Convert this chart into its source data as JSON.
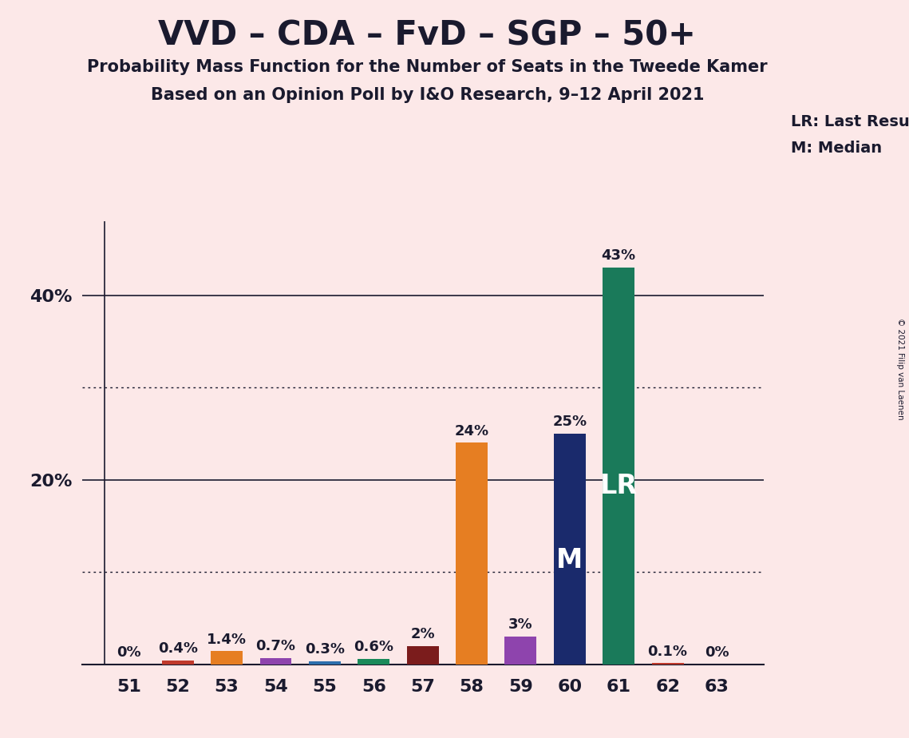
{
  "title": "VVD – CDA – FvD – SGP – 50+",
  "subtitle1": "Probability Mass Function for the Number of Seats in the Tweede Kamer",
  "subtitle2": "Based on an Opinion Poll by I&O Research, 9–12 April 2021",
  "copyright": "© 2021 Filip van Laenen",
  "categories": [
    51,
    52,
    53,
    54,
    55,
    56,
    57,
    58,
    59,
    60,
    61,
    62,
    63
  ],
  "values": [
    0.0,
    0.4,
    1.4,
    0.7,
    0.3,
    0.6,
    2.0,
    24.0,
    3.0,
    25.0,
    43.0,
    0.1,
    0.0
  ],
  "labels": [
    "0%",
    "0.4%",
    "1.4%",
    "0.7%",
    "0.3%",
    "0.6%",
    "2%",
    "24%",
    "3%",
    "25%",
    "43%",
    "0.1%",
    "0%"
  ],
  "bar_colors": [
    "#c0392b",
    "#c0392b",
    "#e67e22",
    "#8e44ad",
    "#2c6fad",
    "#1a8a5a",
    "#7b1c1c",
    "#e67e22",
    "#8e44ad",
    "#1a2a6c",
    "#1a7a5a",
    "#c0392b",
    "#c0392b"
  ],
  "median_idx": 9,
  "lr_idx": 10,
  "background_color": "#fce8e8",
  "text_color": "#1a1a2e",
  "ylim": [
    0,
    48
  ],
  "legend_lr": "LR: Last Result",
  "legend_m": "M: Median",
  "lr_label_in_bar": "LR",
  "m_label_in_bar": "M",
  "dotted_grid": [
    10,
    30
  ],
  "solid_grid": [
    20,
    40
  ]
}
